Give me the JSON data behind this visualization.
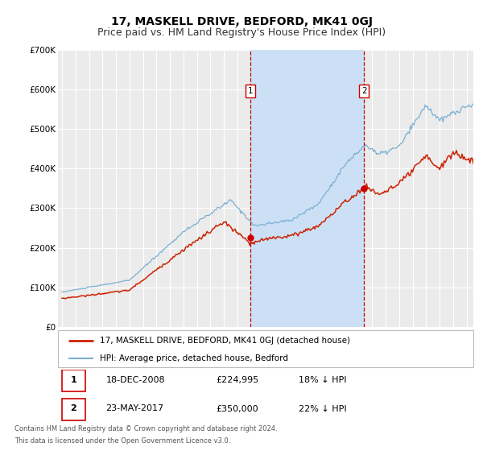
{
  "title": "17, MASKELL DRIVE, BEDFORD, MK41 0GJ",
  "subtitle": "Price paid vs. HM Land Registry's House Price Index (HPI)",
  "ylim": [
    0,
    700000
  ],
  "yticks": [
    0,
    100000,
    200000,
    300000,
    400000,
    500000,
    600000,
    700000
  ],
  "ytick_labels": [
    "£0",
    "£100K",
    "£200K",
    "£300K",
    "£400K",
    "£500K",
    "£600K",
    "£700K"
  ],
  "xlim_start": 1994.7,
  "xlim_end": 2025.5,
  "background_color": "#ffffff",
  "plot_bg_color": "#ebebeb",
  "grid_color": "#ffffff",
  "shade_start": 2008.97,
  "shade_end": 2017.39,
  "shade_color": "#cce0f5",
  "vline1_x": 2008.97,
  "vline2_x": 2017.39,
  "vline_color": "#cc0000",
  "marker1_x": 2008.97,
  "marker1_y": 224995,
  "marker2_x": 2017.39,
  "marker2_y": 350000,
  "marker_color": "#cc0000",
  "hpi_line_color": "#7ab0d4",
  "price_line_color": "#cc2200",
  "legend_label_price": "17, MASKELL DRIVE, BEDFORD, MK41 0GJ (detached house)",
  "legend_label_hpi": "HPI: Average price, detached house, Bedford",
  "table_row1": [
    "1",
    "18-DEC-2008",
    "£224,995",
    "18% ↓ HPI"
  ],
  "table_row2": [
    "2",
    "23-MAY-2017",
    "£350,000",
    "22% ↓ HPI"
  ],
  "footer_line1": "Contains HM Land Registry data © Crown copyright and database right 2024.",
  "footer_line2": "This data is licensed under the Open Government Licence v3.0.",
  "title_fontsize": 10,
  "subtitle_fontsize": 9
}
